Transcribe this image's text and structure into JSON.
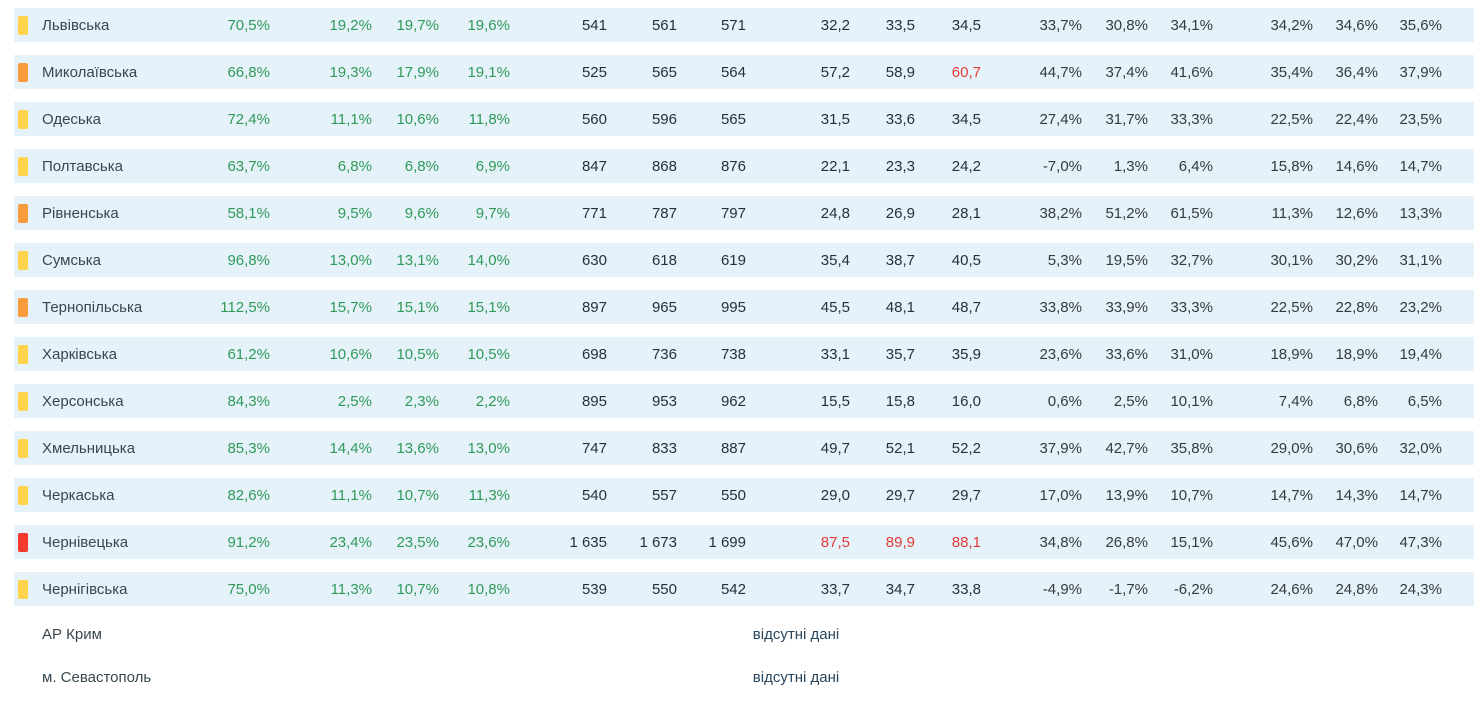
{
  "chart_data": {
    "type": "table",
    "note_no_data": "відсутні дані",
    "indicator_colors": {
      "yellow": "#FFD44C",
      "orange": "#F89B3C",
      "red": "#F5392E"
    },
    "text_colors": {
      "green": "#2f9a58",
      "dark": "#22313f",
      "gray": "#333a40",
      "red": "#e03a35",
      "stripe": "#e6f2fa"
    },
    "rows": [
      {
        "indicator": "yellow",
        "region": "Львівська",
        "values": [
          "70,5%",
          "19,2%",
          "19,7%",
          "19,6%",
          "541",
          "561",
          "571",
          "32,2",
          "33,5",
          "34,5",
          "33,7%",
          "30,8%",
          "34,1%",
          "34,2%",
          "34,6%",
          "35,6%"
        ],
        "red": []
      },
      {
        "indicator": "orange",
        "region": "Миколаївська",
        "values": [
          "66,8%",
          "19,3%",
          "17,9%",
          "19,1%",
          "525",
          "565",
          "564",
          "57,2",
          "58,9",
          "60,7",
          "44,7%",
          "37,4%",
          "41,6%",
          "35,4%",
          "36,4%",
          "37,9%"
        ],
        "red": [
          9
        ]
      },
      {
        "indicator": "yellow",
        "region": "Одеська",
        "values": [
          "72,4%",
          "11,1%",
          "10,6%",
          "11,8%",
          "560",
          "596",
          "565",
          "31,5",
          "33,6",
          "34,5",
          "27,4%",
          "31,7%",
          "33,3%",
          "22,5%",
          "22,4%",
          "23,5%"
        ],
        "red": []
      },
      {
        "indicator": "yellow",
        "region": "Полтавська",
        "values": [
          "63,7%",
          "6,8%",
          "6,8%",
          "6,9%",
          "847",
          "868",
          "876",
          "22,1",
          "23,3",
          "24,2",
          "-7,0%",
          "1,3%",
          "6,4%",
          "15,8%",
          "14,6%",
          "14,7%"
        ],
        "red": []
      },
      {
        "indicator": "orange",
        "region": "Рівненська",
        "values": [
          "58,1%",
          "9,5%",
          "9,6%",
          "9,7%",
          "771",
          "787",
          "797",
          "24,8",
          "26,9",
          "28,1",
          "38,2%",
          "51,2%",
          "61,5%",
          "11,3%",
          "12,6%",
          "13,3%"
        ],
        "red": []
      },
      {
        "indicator": "yellow",
        "region": "Сумська",
        "values": [
          "96,8%",
          "13,0%",
          "13,1%",
          "14,0%",
          "630",
          "618",
          "619",
          "35,4",
          "38,7",
          "40,5",
          "5,3%",
          "19,5%",
          "32,7%",
          "30,1%",
          "30,2%",
          "31,1%"
        ],
        "red": []
      },
      {
        "indicator": "orange",
        "region": "Тернопільська",
        "values": [
          "112,5%",
          "15,7%",
          "15,1%",
          "15,1%",
          "897",
          "965",
          "995",
          "45,5",
          "48,1",
          "48,7",
          "33,8%",
          "33,9%",
          "33,3%",
          "22,5%",
          "22,8%",
          "23,2%"
        ],
        "red": []
      },
      {
        "indicator": "yellow",
        "region": "Харківська",
        "values": [
          "61,2%",
          "10,6%",
          "10,5%",
          "10,5%",
          "698",
          "736",
          "738",
          "33,1",
          "35,7",
          "35,9",
          "23,6%",
          "33,6%",
          "31,0%",
          "18,9%",
          "18,9%",
          "19,4%"
        ],
        "red": []
      },
      {
        "indicator": "yellow",
        "region": "Херсонська",
        "values": [
          "84,3%",
          "2,5%",
          "2,3%",
          "2,2%",
          "895",
          "953",
          "962",
          "15,5",
          "15,8",
          "16,0",
          "0,6%",
          "2,5%",
          "10,1%",
          "7,4%",
          "6,8%",
          "6,5%"
        ],
        "red": []
      },
      {
        "indicator": "yellow",
        "region": "Хмельницька",
        "values": [
          "85,3%",
          "14,4%",
          "13,6%",
          "13,0%",
          "747",
          "833",
          "887",
          "49,7",
          "52,1",
          "52,2",
          "37,9%",
          "42,7%",
          "35,8%",
          "29,0%",
          "30,6%",
          "32,0%"
        ],
        "red": []
      },
      {
        "indicator": "yellow",
        "region": "Черкаська",
        "values": [
          "82,6%",
          "11,1%",
          "10,7%",
          "11,3%",
          "540",
          "557",
          "550",
          "29,0",
          "29,7",
          "29,7",
          "17,0%",
          "13,9%",
          "10,7%",
          "14,7%",
          "14,3%",
          "14,7%"
        ],
        "red": []
      },
      {
        "indicator": "red",
        "region": "Чернівецька",
        "values": [
          "91,2%",
          "23,4%",
          "23,5%",
          "23,6%",
          "1 635",
          "1 673",
          "1 699",
          "87,5",
          "89,9",
          "88,1",
          "34,8%",
          "26,8%",
          "15,1%",
          "45,6%",
          "47,0%",
          "47,3%"
        ],
        "red": [
          7,
          8,
          9
        ]
      },
      {
        "indicator": "yellow",
        "region": "Чернігівська",
        "values": [
          "75,0%",
          "11,3%",
          "10,7%",
          "10,8%",
          "539",
          "550",
          "542",
          "33,7",
          "34,7",
          "33,8",
          "-4,9%",
          "-1,7%",
          "-6,2%",
          "24,6%",
          "24,8%",
          "24,3%"
        ],
        "red": []
      }
    ],
    "no_data_rows": [
      {
        "region": "АР Крим",
        "note": "відсутні дані"
      },
      {
        "region": "м. Севастополь",
        "note": "відсутні дані"
      }
    ]
  }
}
